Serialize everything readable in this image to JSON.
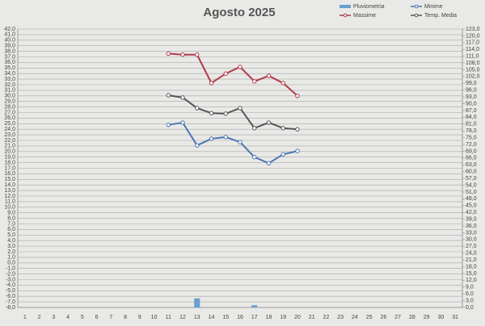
{
  "chart_data": {
    "type": "line",
    "title": "Agosto 2025",
    "categories": [
      "1",
      "2",
      "3",
      "4",
      "5",
      "6",
      "7",
      "8",
      "9",
      "10",
      "11",
      "12",
      "13",
      "14",
      "15",
      "16",
      "17",
      "18",
      "19",
      "20",
      "21",
      "22",
      "23",
      "24",
      "25",
      "26",
      "27",
      "28",
      "29",
      "30",
      "31"
    ],
    "series": [
      {
        "name": "Pluviometria",
        "type": "bar",
        "axis": "y2",
        "color": "#6a9fd0",
        "values": [
          null,
          null,
          null,
          null,
          null,
          null,
          null,
          null,
          null,
          null,
          null,
          null,
          4,
          null,
          null,
          null,
          1,
          null,
          null,
          null,
          null,
          null,
          null,
          null,
          null,
          null,
          null,
          null,
          null,
          null,
          null
        ]
      },
      {
        "name": "Minime",
        "color": "#4a76b0",
        "values": [
          null,
          null,
          null,
          null,
          null,
          null,
          null,
          null,
          null,
          null,
          24.8,
          25.2,
          21.1,
          22.3,
          22.6,
          21.7,
          19.0,
          17.9,
          19.5,
          20.1,
          null,
          null,
          null,
          null,
          null,
          null,
          null,
          null,
          null,
          null,
          null
        ]
      },
      {
        "name": "Massime",
        "color": "#b03a4a",
        "values": [
          null,
          null,
          null,
          null,
          null,
          null,
          null,
          null,
          null,
          null,
          37.6,
          37.4,
          37.4,
          32.3,
          34.0,
          35.2,
          32.6,
          33.6,
          32.3,
          30.0,
          null,
          null,
          null,
          null,
          null,
          null,
          null,
          null,
          null,
          null,
          null
        ]
      },
      {
        "name": "Temp. Media",
        "color": "#555555",
        "values": [
          null,
          null,
          null,
          null,
          null,
          null,
          null,
          null,
          null,
          null,
          30.1,
          29.7,
          27.8,
          26.9,
          26.8,
          27.8,
          24.2,
          25.2,
          24.2,
          24.0,
          null,
          null,
          null,
          null,
          null,
          null,
          null,
          null,
          null,
          null,
          null
        ]
      }
    ],
    "ylim": [
      -8,
      42
    ],
    "yticks": [
      {
        "value": -8,
        "label": "-8,0"
      },
      {
        "value": -7,
        "label": "-7,0"
      },
      {
        "value": -6,
        "label": "-6,0"
      },
      {
        "value": -5,
        "label": "-5,0"
      },
      {
        "value": -4,
        "label": "-4,0"
      },
      {
        "value": -3,
        "label": "-3,0"
      },
      {
        "value": -2,
        "label": "-2,0"
      },
      {
        "value": -1,
        "label": "-1,0"
      },
      {
        "value": 0,
        "label": "0,0"
      },
      {
        "value": 1,
        "label": "1,0"
      },
      {
        "value": 2,
        "label": "2,0"
      },
      {
        "value": 3,
        "label": "3,0"
      },
      {
        "value": 4,
        "label": "4,0"
      },
      {
        "value": 5,
        "label": "5,0"
      },
      {
        "value": 6,
        "label": "6,0"
      },
      {
        "value": 7,
        "label": "7,0"
      },
      {
        "value": 8,
        "label": "8,0"
      },
      {
        "value": 9,
        "label": "9,0"
      },
      {
        "value": 10,
        "label": "10,0"
      },
      {
        "value": 11,
        "label": "11,0"
      },
      {
        "value": 12,
        "label": "12,0"
      },
      {
        "value": 13,
        "label": "13,0"
      },
      {
        "value": 14,
        "label": "14,0"
      },
      {
        "value": 15,
        "label": "15,0"
      },
      {
        "value": 16,
        "label": "16,0"
      },
      {
        "value": 17,
        "label": "17,0"
      },
      {
        "value": 18,
        "label": "18,0"
      },
      {
        "value": 19,
        "label": "19,0"
      },
      {
        "value": 20,
        "label": "20,0"
      },
      {
        "value": 21,
        "label": "21,0"
      },
      {
        "value": 22,
        "label": "22,0"
      },
      {
        "value": 23,
        "label": "23,0"
      },
      {
        "value": 24,
        "label": "24,0"
      },
      {
        "value": 25,
        "label": "25,0"
      },
      {
        "value": 26,
        "label": "26,0"
      },
      {
        "value": 27,
        "label": "27,0"
      },
      {
        "value": 28,
        "label": "28,0"
      },
      {
        "value": 29,
        "label": "29,0"
      },
      {
        "value": 30,
        "label": "30,0"
      },
      {
        "value": 31,
        "label": "31,0"
      },
      {
        "value": 32,
        "label": "32,0"
      },
      {
        "value": 33,
        "label": "33,0"
      },
      {
        "value": 34,
        "label": "34,0"
      },
      {
        "value": 35,
        "label": "35,0"
      },
      {
        "value": 36,
        "label": "36,0"
      },
      {
        "value": 37,
        "label": "37,0"
      },
      {
        "value": 38,
        "label": "38,0"
      },
      {
        "value": 39,
        "label": "39,0"
      },
      {
        "value": 40,
        "label": "40,0"
      },
      {
        "value": 41,
        "label": "41,0"
      },
      {
        "value": 42,
        "label": "42,0"
      }
    ],
    "y2lim": [
      0,
      123
    ],
    "y2ticks": [
      {
        "value": 0,
        "label": "0,0"
      },
      {
        "value": 3,
        "label": "3,0"
      },
      {
        "value": 6,
        "label": "6,0"
      },
      {
        "value": 9,
        "label": "9,0"
      },
      {
        "value": 12,
        "label": "12,0"
      },
      {
        "value": 15,
        "label": "15,0"
      },
      {
        "value": 18,
        "label": "18,0"
      },
      {
        "value": 21,
        "label": "21,0"
      },
      {
        "value": 24,
        "label": "24,0"
      },
      {
        "value": 27,
        "label": "27,0"
      },
      {
        "value": 30,
        "label": "30,0"
      },
      {
        "value": 33,
        "label": "33,0"
      },
      {
        "value": 36,
        "label": "36,0"
      },
      {
        "value": 39,
        "label": "39,0"
      },
      {
        "value": 42,
        "label": "42,0"
      },
      {
        "value": 45,
        "label": "45,0"
      },
      {
        "value": 48,
        "label": "48,0"
      },
      {
        "value": 51,
        "label": "51,0"
      },
      {
        "value": 54,
        "label": "54,0"
      },
      {
        "value": 57,
        "label": "57,0"
      },
      {
        "value": 60,
        "label": "60,0"
      },
      {
        "value": 63,
        "label": "63,0"
      },
      {
        "value": 66,
        "label": "66,0"
      },
      {
        "value": 69,
        "label": "69,0"
      },
      {
        "value": 72,
        "label": "72,0"
      },
      {
        "value": 75,
        "label": "75,0"
      },
      {
        "value": 78,
        "label": "78,0"
      },
      {
        "value": 81,
        "label": "81,0"
      },
      {
        "value": 84,
        "label": "84,0"
      },
      {
        "value": 87,
        "label": "87,0"
      },
      {
        "value": 90,
        "label": "90,0"
      },
      {
        "value": 93,
        "label": "93,0"
      },
      {
        "value": 96,
        "label": "96,0"
      },
      {
        "value": 99,
        "label": "99,0"
      },
      {
        "value": 102,
        "label": "102,0"
      },
      {
        "value": 105,
        "label": "105,0"
      },
      {
        "value": 108,
        "label": "108,0"
      },
      {
        "value": 111,
        "label": "111,0"
      },
      {
        "value": 114,
        "label": "114,0"
      },
      {
        "value": 117,
        "label": "117,0"
      },
      {
        "value": 120,
        "label": "120,0"
      },
      {
        "value": 123,
        "label": "123,0"
      }
    ],
    "grid": true
  }
}
